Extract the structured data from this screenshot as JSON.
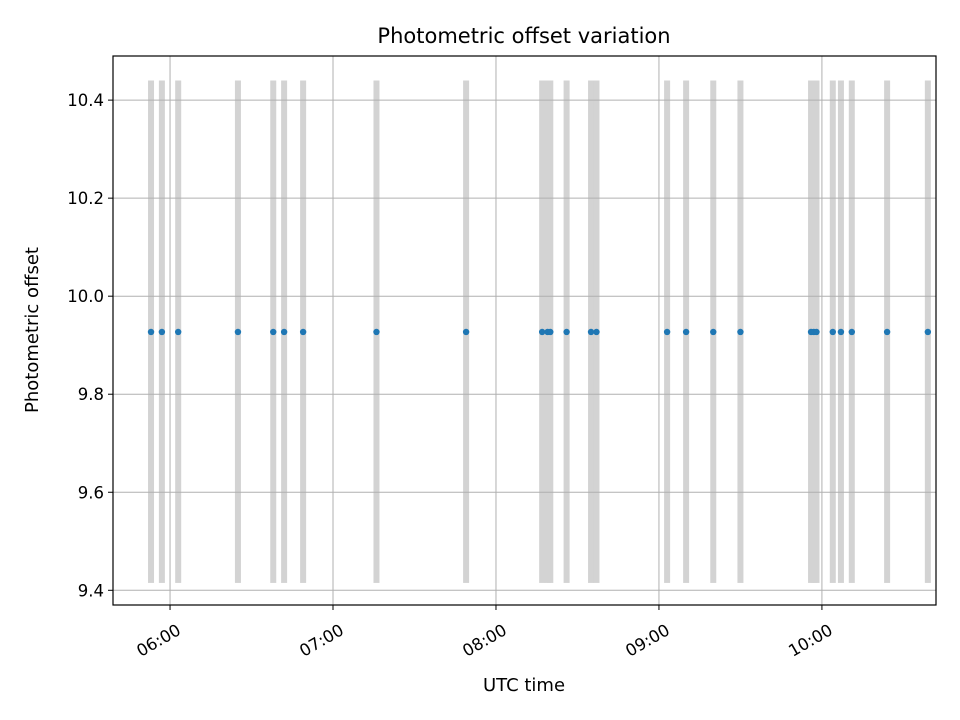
{
  "chart_data": {
    "type": "scatter",
    "title": "Photometric offset variation",
    "xlabel": "UTC time",
    "ylabel": "Photometric offset",
    "x_axis_type": "time",
    "xlim": [
      "05:39",
      "10:42"
    ],
    "ylim": [
      9.37,
      10.49
    ],
    "x_ticks": [
      "06:00",
      "07:00",
      "08:00",
      "09:00",
      "10:00"
    ],
    "y_ticks": [
      9.4,
      9.6,
      9.8,
      10.0,
      10.2,
      10.4
    ],
    "y_tick_labels": [
      "9.4",
      "9.6",
      "9.8",
      "10.0",
      "10.2",
      "10.4"
    ],
    "grid": true,
    "legend": "none",
    "marker_color": "#1f77b4",
    "band_color": "#d3d3d3",
    "band_y_range": [
      9.415,
      10.44
    ],
    "series": [
      {
        "x": [
          "05:53",
          "05:57",
          "06:03",
          "06:25",
          "06:38",
          "06:42",
          "06:49",
          "07:16",
          "07:49",
          "08:17",
          "08:19",
          "08:20",
          "08:26",
          "08:35",
          "08:37",
          "09:03",
          "09:10",
          "09:20",
          "09:30",
          "09:56",
          "09:57",
          "09:58",
          "10:04",
          "10:07",
          "10:11",
          "10:24",
          "10:39"
        ],
        "y": [
          9.927,
          9.927,
          9.927,
          9.927,
          9.927,
          9.927,
          9.927,
          9.927,
          9.927,
          9.927,
          9.927,
          9.927,
          9.927,
          9.927,
          9.927,
          9.927,
          9.927,
          9.927,
          9.927,
          9.927,
          9.927,
          9.927,
          9.927,
          9.927,
          9.927,
          9.927,
          9.927
        ]
      }
    ]
  }
}
